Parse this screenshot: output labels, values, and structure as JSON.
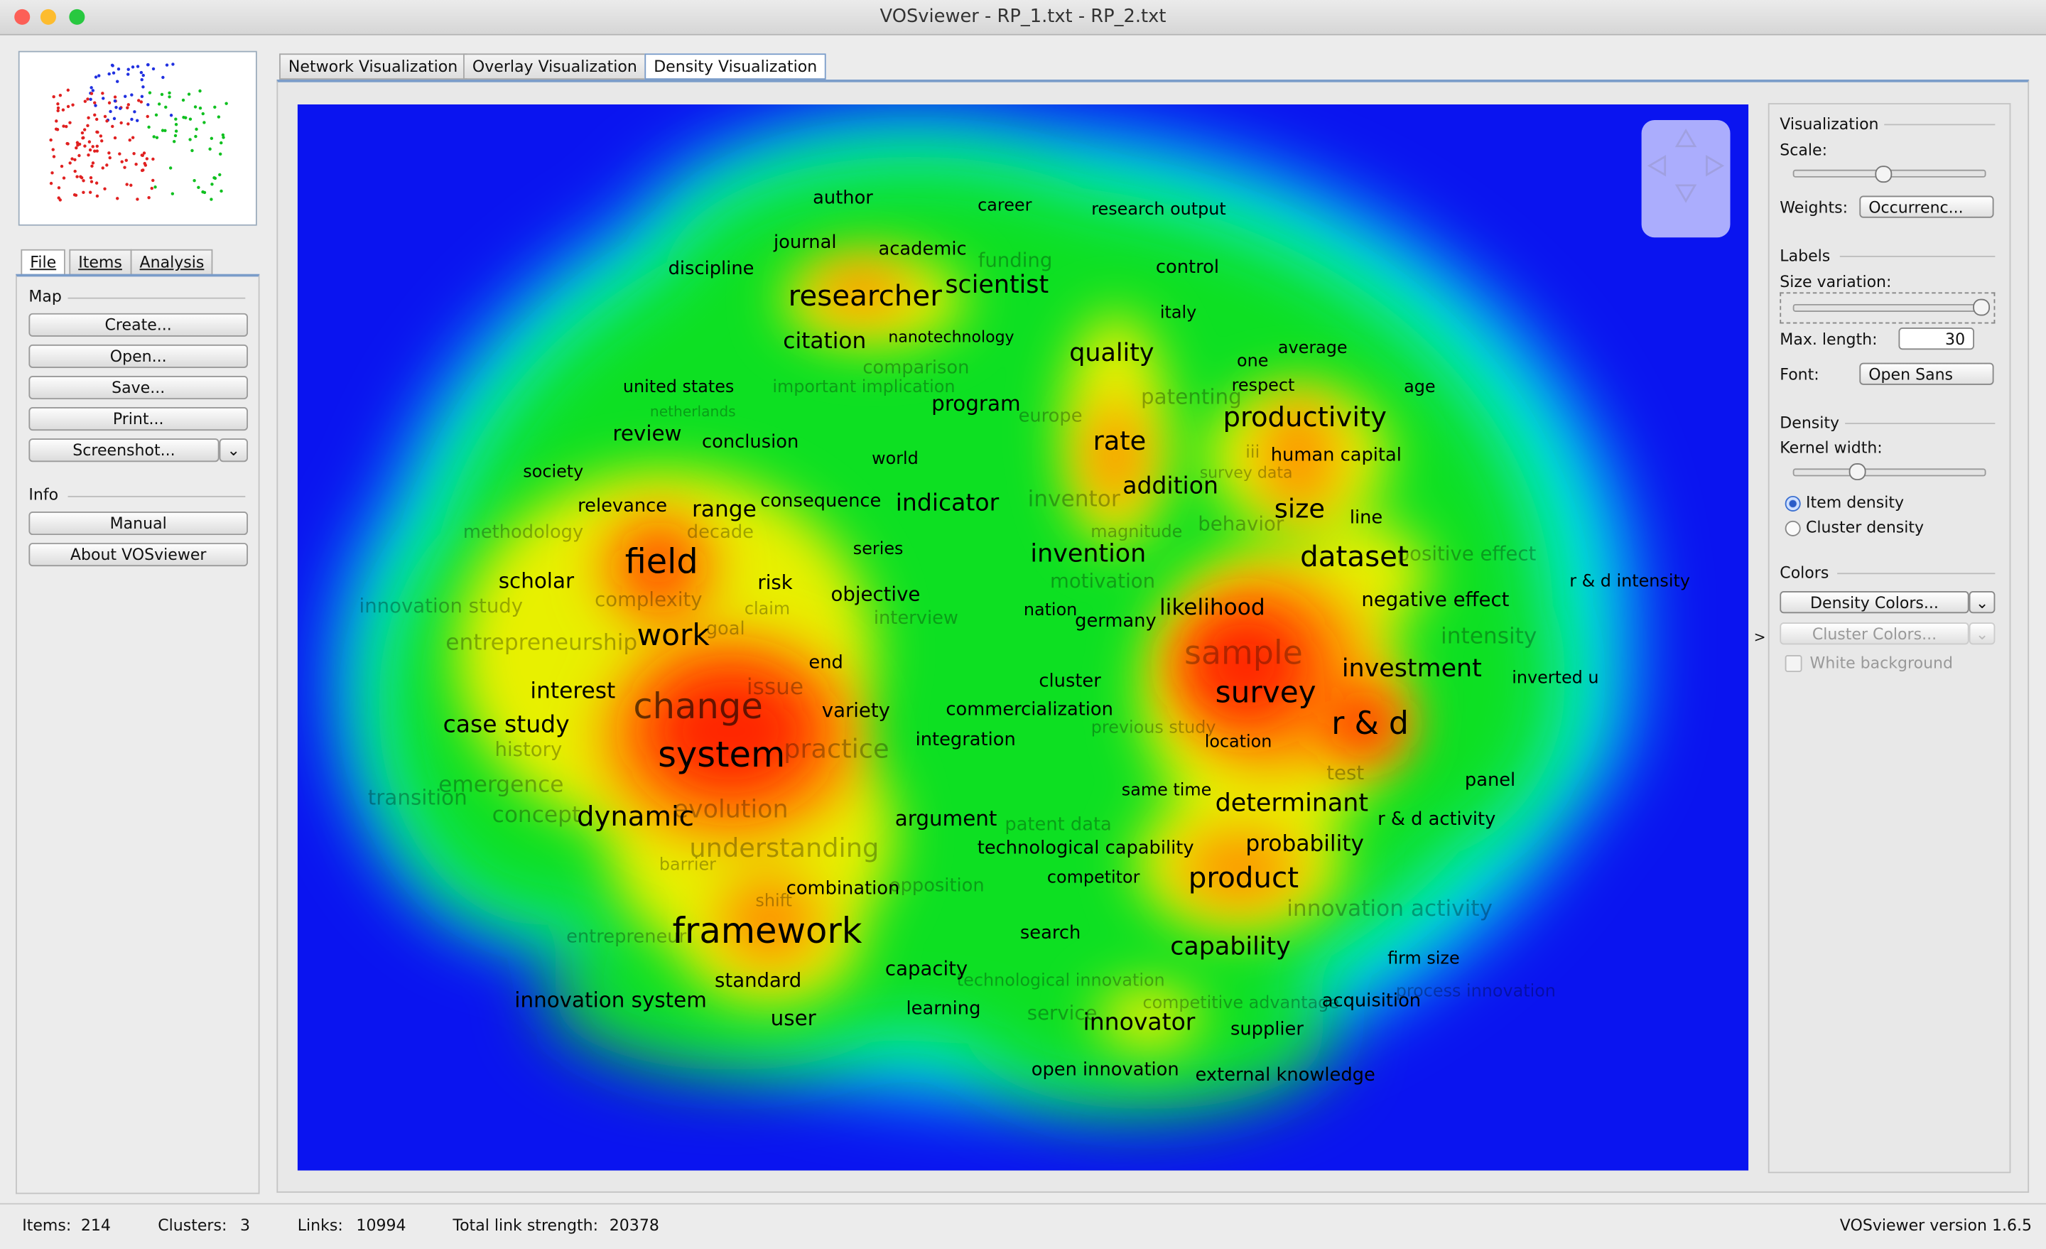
{
  "window": {
    "title": "VOSviewer - RP_1.txt - RP_2.txt"
  },
  "left_panel": {
    "tabs": [
      "File",
      "Items",
      "Analysis"
    ],
    "map_heading": "Map",
    "map_buttons": [
      "Create...",
      "Open...",
      "Save...",
      "Print...",
      "Screenshot..."
    ],
    "info_heading": "Info",
    "info_buttons": [
      "Manual",
      "About VOSviewer"
    ]
  },
  "view_tabs": [
    "Network Visualization",
    "Overlay Visualization",
    "Density Visualization"
  ],
  "density_map": {
    "labels": [
      "author",
      "career",
      "research output",
      "journal",
      "academic",
      "funding",
      "discipline",
      "scientist",
      "control",
      "researcher",
      "nanotechnology",
      "italy",
      "citation",
      "quality",
      "one",
      "average",
      "comparison",
      "united states",
      "important implication",
      "respect",
      "patenting",
      "productivity",
      "age",
      "netherlands",
      "program",
      "europe",
      "review",
      "conclusion",
      "rate",
      "iii",
      "human capital",
      "world",
      "society",
      "survey data",
      "relevance",
      "range",
      "consequence",
      "indicator",
      "inventor",
      "addition",
      "size",
      "line",
      "methodology",
      "decade",
      "magnitude",
      "behavior",
      "field",
      "series",
      "invention",
      "dataset",
      "positive effect",
      "r & d intensity",
      "scholar",
      "risk",
      "motivation",
      "objective",
      "complexity",
      "innovation study",
      "claim",
      "interview",
      "nation",
      "germany",
      "likelihood",
      "negative effect",
      "work",
      "intensity",
      "goal",
      "entrepreneurship",
      "sample",
      "end",
      "investment",
      "inverted u",
      "issue",
      "interest",
      "cluster",
      "survey",
      "change",
      "variety",
      "commercialization",
      "r & d",
      "case study",
      "previous study",
      "integration",
      "location",
      "system",
      "practice",
      "history",
      "test",
      "emergence",
      "transition",
      "same time",
      "determinant",
      "panel",
      "concept",
      "dynamic",
      "evolution",
      "argument",
      "patent data",
      "r & d activity",
      "understanding",
      "technological capability",
      "probability",
      "barrier",
      "competitor",
      "product",
      "combination",
      "opposition",
      "shift",
      "innovation activity",
      "framework",
      "entrepreneur",
      "search",
      "capability",
      "firm size",
      "standard",
      "capacity",
      "technological innovation",
      "innovation system",
      "learning",
      "service",
      "competitive advantage",
      "acquisition",
      "process innovation",
      "user",
      "innovator",
      "supplier",
      "open innovation",
      "external knowledge"
    ]
  },
  "right_panel": {
    "visualization_heading": "Visualization",
    "scale_label": "Scale:",
    "weights_label": "Weights:",
    "weights_value": "Occurrenc...",
    "labels_heading": "Labels",
    "size_variation_label": "Size variation:",
    "max_length_label": "Max. length:",
    "max_length_value": 30,
    "font_label": "Font:",
    "font_value": "Open Sans",
    "density_heading": "Density",
    "kernel_width_label": "Kernel width:",
    "density_options": [
      "Item density",
      "Cluster density"
    ],
    "colors_heading": "Colors",
    "density_colors_button": "Density Colors...",
    "cluster_colors_button": "Cluster Colors...",
    "white_background_label": "White background"
  },
  "status_bar": {
    "items_label": "Items:",
    "items": 214,
    "clusters_label": "Clusters:",
    "clusters": 3,
    "links_label": "Links:",
    "links": 10994,
    "total_link_strength_label": "Total link strength:",
    "total_link_strength": 20378,
    "version": "VOSviewer version 1.6.5"
  }
}
